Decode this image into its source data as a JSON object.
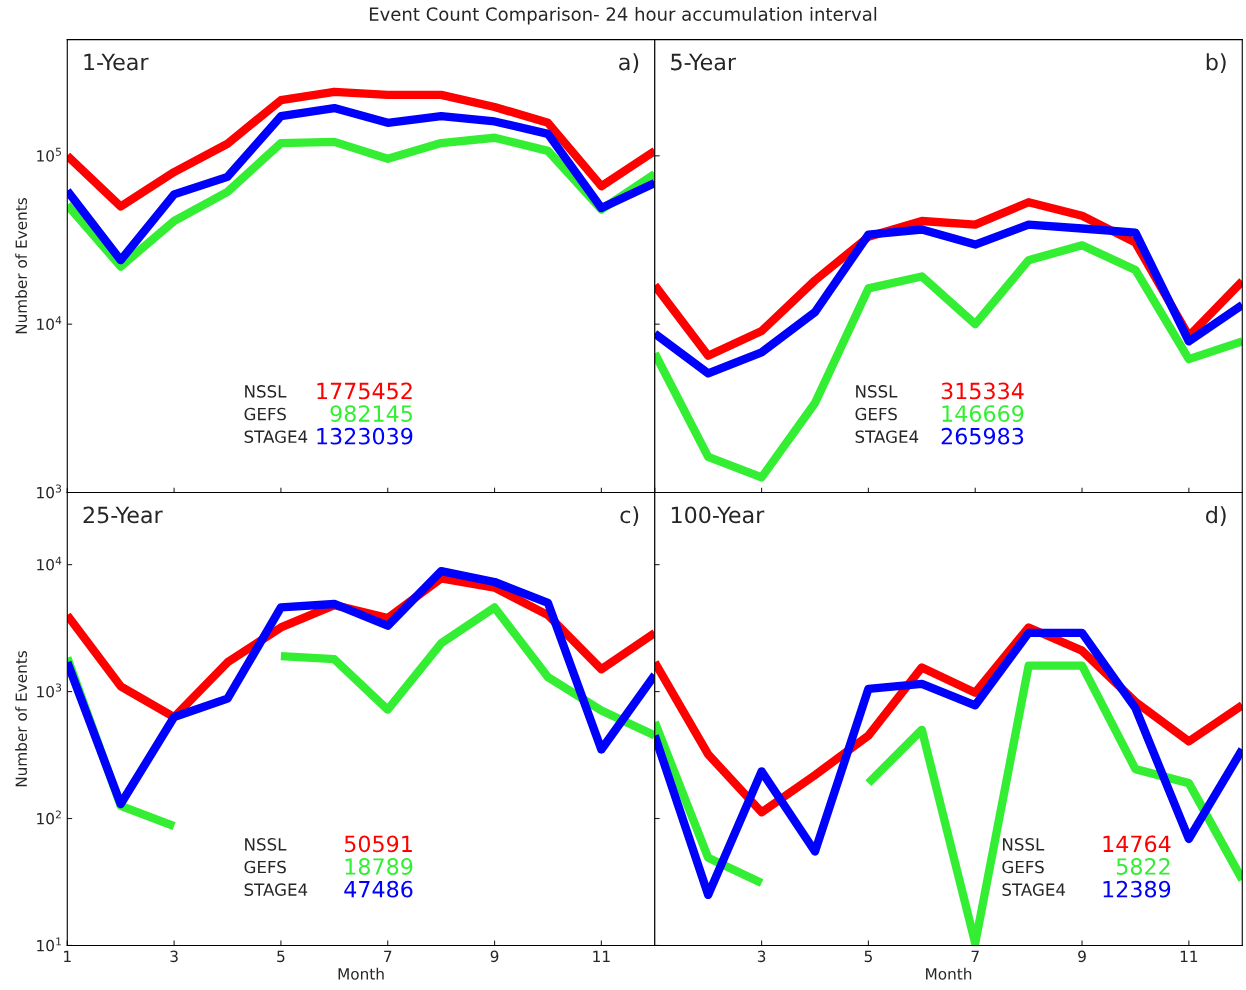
{
  "chart_data": [
    {
      "type": "line",
      "title": "Event Count Comparison- 24 hour accumulation interval",
      "ylabel": "Number of Events",
      "x": [
        1,
        2,
        3,
        4,
        5,
        6,
        7,
        8,
        9,
        10,
        11,
        12
      ],
      "log": true,
      "xlim": [
        1,
        12
      ],
      "xticks": [
        1,
        3,
        5,
        7,
        9,
        11
      ],
      "ylim": [
        1000,
        490000
      ],
      "yticks": [
        {
          "value": 1000,
          "label": "10$^{3}$"
        },
        {
          "value": 10000,
          "label": "10$^{4}$"
        },
        {
          "value": 100000,
          "label": "10$^{5}$"
        }
      ],
      "tick_labels": "y",
      "grid": false,
      "line_style": "solid",
      "marker": "none",
      "annotations": [
        "1-Year",
        "a)",
        "NSSL",
        "1775452",
        "GEFS",
        "982145",
        "STAGE4",
        "1323039"
      ],
      "series": [
        {
          "color": "#ff0000",
          "values": [
            100000,
            50000,
            80000,
            118000,
            214000,
            240000,
            230000,
            230000,
            195000,
            157000,
            66000,
            107000
          ]
        },
        {
          "color": "#33ee33",
          "values": [
            51000,
            22000,
            41000,
            61000,
            119000,
            121000,
            96000,
            119000,
            128000,
            107000,
            48000,
            78000
          ]
        },
        {
          "color": "#0000ff",
          "values": [
            62000,
            24000,
            59000,
            75000,
            172000,
            192000,
            157000,
            172000,
            160000,
            135000,
            49000,
            69000
          ]
        }
      ]
    },
    {
      "type": "line",
      "x": [
        1,
        2,
        3,
        4,
        5,
        6,
        7,
        8,
        9,
        10,
        11,
        12
      ],
      "log": true,
      "xlim": [
        1,
        12
      ],
      "xticks": [
        1,
        3,
        5,
        7,
        9,
        11
      ],
      "ylim": [
        1000,
        490000
      ],
      "yticks": [
        1000,
        10000,
        100000
      ],
      "tick_labels": false,
      "grid": false,
      "line_style": "solid",
      "marker": "none",
      "annotations": [
        "5-Year",
        "b)",
        "NSSL",
        "315334",
        "GEFS",
        "146669",
        "STAGE4",
        "265983"
      ],
      "series": [
        {
          "color": "#ff0000",
          "values": [
            17000,
            6500,
            9100,
            18200,
            33000,
            41000,
            39000,
            53000,
            44000,
            30500,
            8500,
            18000
          ]
        },
        {
          "color": "#33ee33",
          "values": [
            6700,
            1630,
            1230,
            3400,
            16300,
            19200,
            10000,
            24000,
            29400,
            21000,
            6200,
            7900
          ]
        },
        {
          "color": "#0000ff",
          "values": [
            8800,
            5100,
            6800,
            11800,
            34000,
            36500,
            29700,
            39000,
            37000,
            35000,
            7900,
            13000
          ]
        }
      ]
    },
    {
      "type": "line",
      "xlabel": "Month",
      "ylabel": "Number of Events",
      "x": [
        1,
        2,
        3,
        4,
        5,
        6,
        7,
        8,
        9,
        10,
        11,
        12
      ],
      "log": true,
      "xlim": [
        1,
        12
      ],
      "xticks": [
        1,
        3,
        5,
        7,
        9,
        11
      ],
      "ylim": [
        10,
        37000
      ],
      "yticks": [
        {
          "value": 10,
          "label": "10$^{1}$"
        },
        {
          "value": 100,
          "label": "10$^{2}$"
        },
        {
          "value": 1000,
          "label": "10$^{3}$"
        },
        {
          "value": 10000,
          "label": "10$^{4}$"
        }
      ],
      "grid": false,
      "line_style": "solid",
      "marker": "none",
      "annotations": [
        "25-Year",
        "c)",
        "NSSL",
        "50591",
        "GEFS",
        "18789",
        "STAGE4",
        "47486"
      ],
      "series": [
        {
          "color": "#ff0000",
          "values": [
            4000,
            1100,
            630,
            1700,
            3200,
            4800,
            3800,
            7800,
            6600,
            4000,
            1500,
            2900
          ]
        },
        {
          "color": "#33ee33",
          "values": [
            1850,
            126,
            87,
            null,
            1900,
            1800,
            720,
            2400,
            4600,
            1300,
            710,
            450
          ]
        },
        {
          "color": "#0000ff",
          "values": [
            1700,
            130,
            630,
            880,
            4600,
            4900,
            3300,
            8900,
            7300,
            5000,
            350,
            1350
          ]
        }
      ]
    },
    {
      "type": "line",
      "xlabel": "Month",
      "x": [
        1,
        2,
        3,
        4,
        5,
        6,
        7,
        8,
        9,
        10,
        11,
        12
      ],
      "log": true,
      "xlim": [
        1,
        12
      ],
      "xticks": [
        3,
        5,
        7,
        9,
        11
      ],
      "ylim": [
        10,
        37000
      ],
      "yticks": [
        10,
        100,
        1000,
        10000
      ],
      "tick_labels": "x",
      "grid": false,
      "line_style": "solid",
      "marker": "none",
      "annotations": [
        "100-Year",
        "d)",
        "NSSL",
        "14764",
        "GEFS",
        "5822",
        "STAGE4",
        "12389"
      ],
      "series": [
        {
          "color": "#ff0000",
          "values": [
            1700,
            320,
            112,
            220,
            450,
            1550,
            980,
            3200,
            2100,
            830,
            405,
            780
          ]
        },
        {
          "color": "#33ee33",
          "values": [
            575,
            49,
            31,
            null,
            190,
            500,
            10.4,
            1600,
            1600,
            245,
            190,
            33
          ]
        },
        {
          "color": "#0000ff",
          "values": [
            450,
            25,
            235,
            55,
            1050,
            1150,
            780,
            2900,
            2900,
            740,
            69,
            350
          ]
        }
      ]
    }
  ]
}
